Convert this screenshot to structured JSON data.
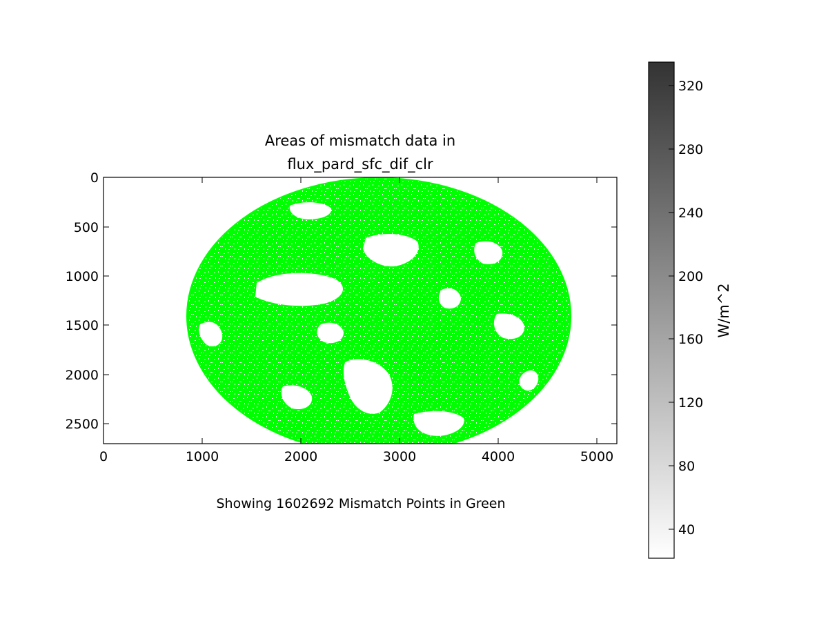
{
  "chart_data": {
    "type": "heatmap",
    "title_line1": "Areas of mismatch data in",
    "title_line2": "flux_pard_sfc_dif_clr",
    "xlabel": "",
    "ylabel": "",
    "xlim": [
      0,
      5200
    ],
    "ylim": [
      2700,
      0
    ],
    "x_ticks": [
      0,
      1000,
      2000,
      3000,
      4000,
      5000
    ],
    "y_ticks": [
      0,
      500,
      1000,
      1500,
      2000,
      2500
    ],
    "caption": "Showing 1602692 Mismatch Points in Green",
    "mismatch_count": 1602692,
    "mismatch_color": "#00ff00",
    "colorbar": {
      "label": "W/m^2",
      "range": [
        22,
        335
      ],
      "ticks": [
        40,
        80,
        120,
        160,
        200,
        240,
        280,
        320
      ],
      "color_low": "#ffffff",
      "color_high": "#333333"
    },
    "grid": false
  }
}
